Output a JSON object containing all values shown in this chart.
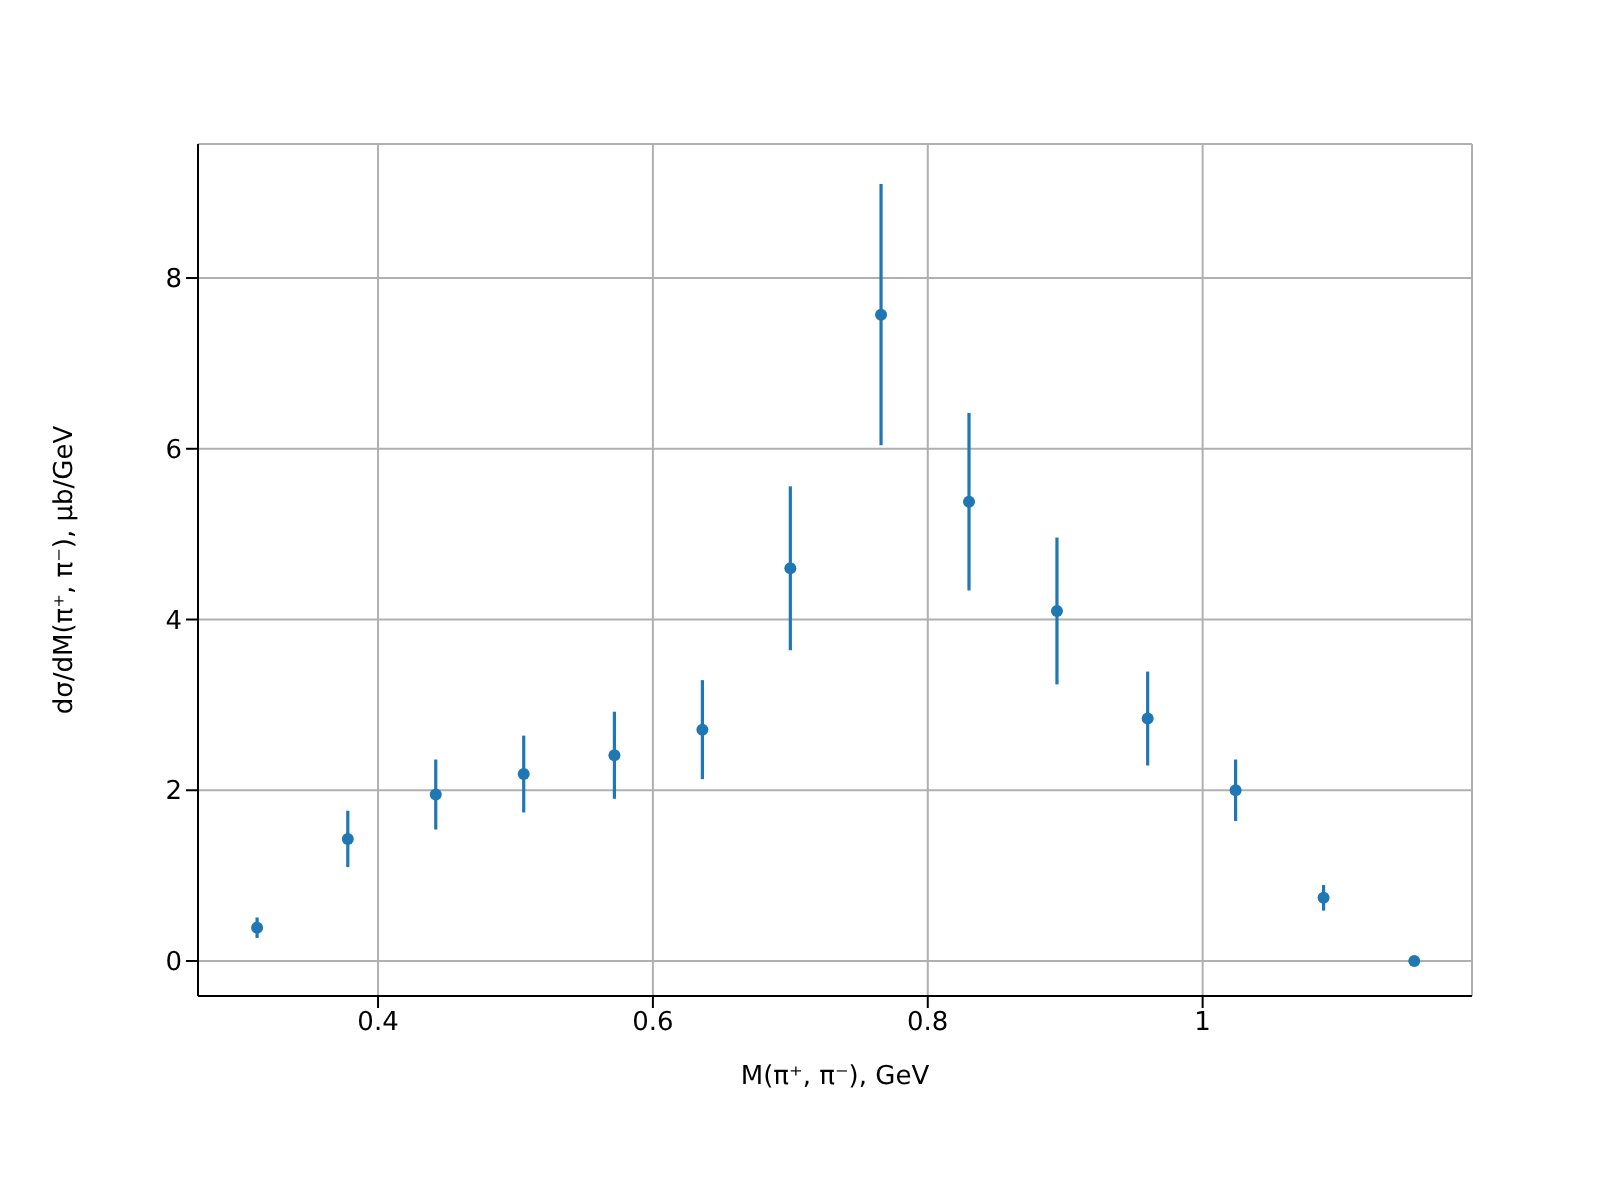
{
  "chart_data": {
    "type": "scatter",
    "xlabel": "M(π⁺, π⁻), GeV",
    "ylabel": "dσ/dM(π⁺, π⁻), μb/GeV",
    "x": [
      0.312,
      0.378,
      0.442,
      0.506,
      0.572,
      0.636,
      0.7,
      0.766,
      0.83,
      0.894,
      0.96,
      1.024,
      1.088,
      1.154
    ],
    "values": [
      0.39,
      1.43,
      1.95,
      2.19,
      2.41,
      2.71,
      4.6,
      7.57,
      5.38,
      4.1,
      2.84,
      2.0,
      0.74,
      0.0
    ],
    "errors": [
      0.12,
      0.33,
      0.41,
      0.45,
      0.51,
      0.58,
      0.96,
      1.53,
      1.04,
      0.86,
      0.55,
      0.36,
      0.15,
      null
    ],
    "color": "#1f77b4",
    "marker": "circle",
    "xlim": [
      0.269,
      1.196
    ],
    "xticks": [
      0.4,
      0.6,
      0.8,
      1.0
    ],
    "ylim": [
      -0.41,
      9.57
    ],
    "yticks": [
      0,
      2,
      4,
      6,
      8
    ],
    "grid": true
  }
}
